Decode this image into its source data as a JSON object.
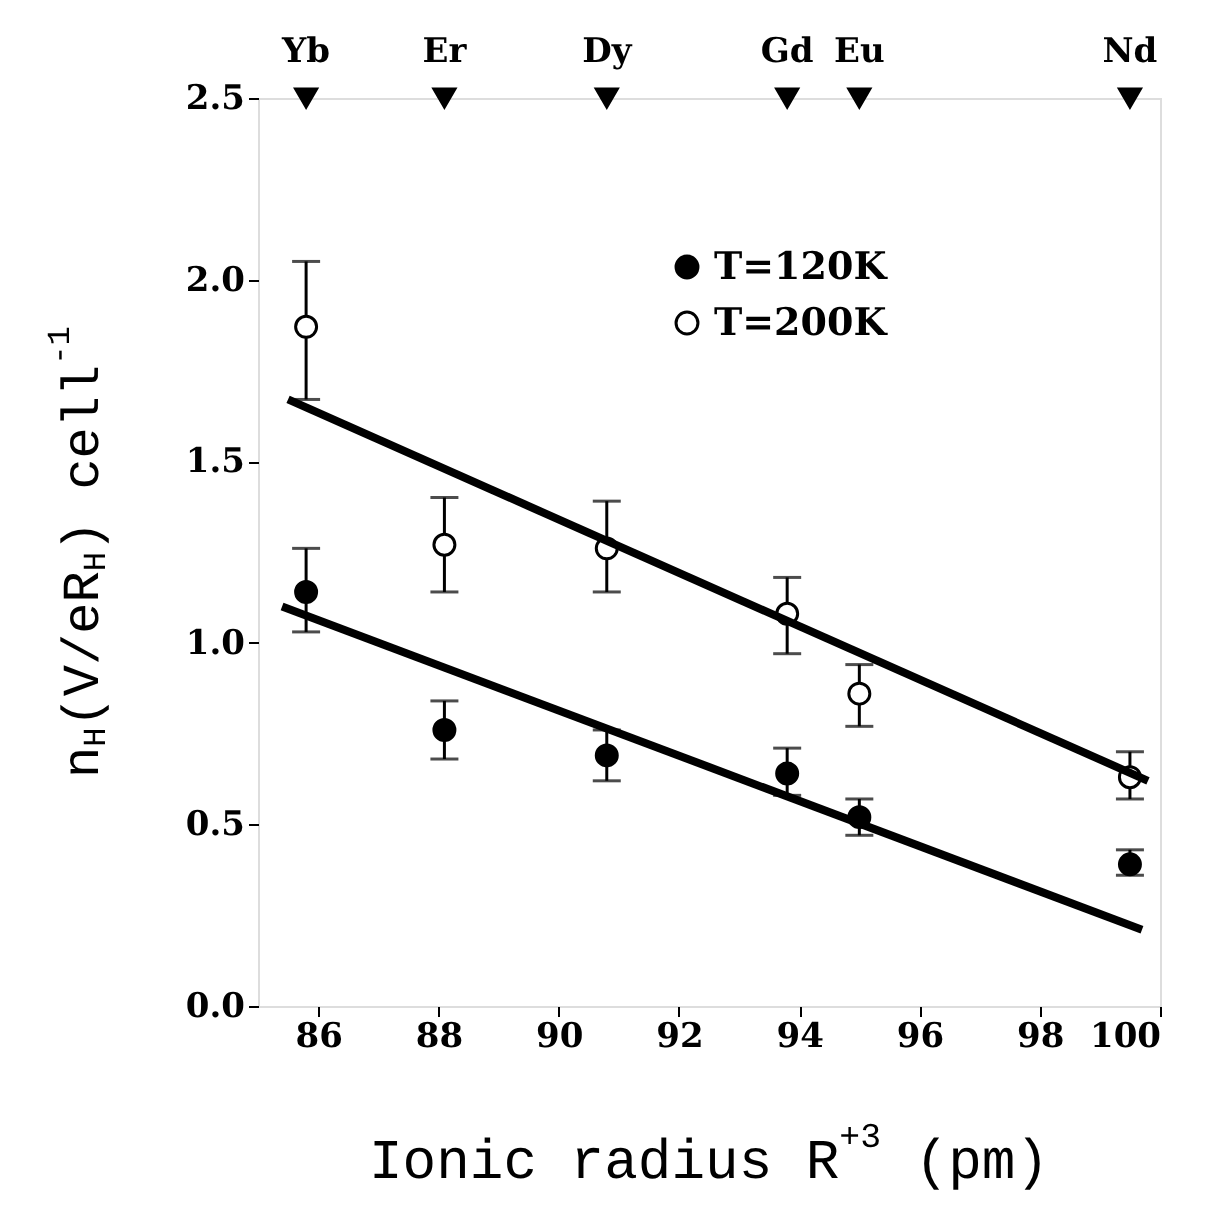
{
  "chart_data": {
    "type": "scatter",
    "xlabel": "Ionic radius R$^{+3}$ (pm)",
    "ylabel": "n$_{H}$(V/eR$_{H}$) cell$^{-1}$",
    "xlim": [
      85,
      100
    ],
    "xticks": [
      86,
      88,
      90,
      92,
      94,
      96,
      98,
      100
    ],
    "ylim": [
      0,
      2.5
    ],
    "yticks": [
      {
        "value": 0,
        "label": "0.0"
      },
      0.5,
      {
        "value": 1,
        "label": "1.0"
      },
      1.5,
      {
        "value": 2,
        "label": "2.0"
      },
      2.5
    ],
    "x": [
      85.8,
      88.1,
      90.8,
      93.8,
      95.0,
      99.5
    ],
    "marker": "circle",
    "legend": "top right",
    "grid": false,
    "series": [
      {
        "name": "T=120K",
        "color": "#000000",
        "values": [
          1.14,
          0.76,
          0.69,
          0.64,
          0.52,
          0.39
        ],
        "errors": [
          [
            1.03,
            1.26
          ],
          [
            0.68,
            0.84
          ],
          [
            0.62,
            0.76
          ],
          [
            0.58,
            0.71
          ],
          [
            0.47,
            0.57
          ],
          [
            0.36,
            0.43
          ]
        ]
      },
      {
        "name": "T=200K",
        "color": "#ffffff",
        "values": [
          1.87,
          1.27,
          1.26,
          1.08,
          0.86,
          0.63
        ],
        "errors": [
          [
            1.67,
            2.05
          ],
          [
            1.14,
            1.4
          ],
          [
            1.14,
            1.39
          ],
          [
            0.97,
            1.18
          ],
          [
            0.77,
            0.94
          ],
          [
            0.57,
            0.7
          ]
        ]
      },
      {
        "type": "scatter",
        "color": "#000000",
        "marker": "triangle",
        "x": [
          85.8,
          88.1,
          90.8,
          93.8,
          95.0,
          99.5
        ],
        "values": [
          2.5,
          2.5,
          2.5,
          2.5,
          2.5,
          2.5
        ],
        "value_labels": [
          "Yb",
          "Er",
          "Dy",
          "Gd",
          "Eu",
          "Nd"
        ]
      },
      {
        "type": "line",
        "color": "#000000",
        "marker": "none",
        "line_style": "solid",
        "x": [
          85.4,
          99.7
        ],
        "values": [
          1.1,
          0.21
        ]
      },
      {
        "type": "line",
        "color": "#000000",
        "marker": "none",
        "line_style": "solid",
        "x": [
          85.5,
          99.8
        ],
        "values": [
          1.67,
          0.62
        ]
      }
    ]
  }
}
